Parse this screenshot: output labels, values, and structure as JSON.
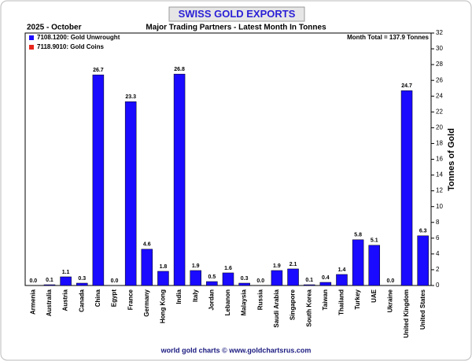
{
  "chart_data": {
    "type": "bar",
    "title": "SWISS GOLD EXPORTS",
    "subtitle": "Major Trading Partners - Latest Month In Tonnes",
    "period": "2025 - October",
    "annotation": "Month Total = 137.9 Tonnes",
    "y_label": "Tonnes of Gold",
    "footer": "world gold charts © www.goldchartsrus.com",
    "categories": [
      "Armenia",
      "Australia",
      "Austria",
      "Canada",
      "China",
      "Egypt",
      "France",
      "Germany",
      "Hong Kong",
      "India",
      "Italy",
      "Jordan",
      "Lebanon",
      "Malaysia",
      "Russia",
      "Saudi Arabia",
      "Singapore",
      "South Korea",
      "Taiwan",
      "Thailand",
      "Turkey",
      "UAE",
      "Ukraine",
      "United Kingdom",
      "United States"
    ],
    "series": [
      {
        "name": "7108.1200: Gold Unwrought",
        "color": "#1a0aff",
        "values": [
          0,
          0.1,
          1.1,
          0.3,
          26.7,
          0,
          23.3,
          4.6,
          1.8,
          26.8,
          1.9,
          0.5,
          1.6,
          0.3,
          0,
          1.9,
          2.1,
          0.1,
          0.4,
          1.4,
          5.8,
          5.1,
          0,
          24.7,
          6.3
        ],
        "value_labels": [
          "0.0",
          "0.1",
          "1.1",
          "0.3",
          "26.7",
          "0.0",
          "23.3",
          "4.6",
          "1.8",
          "26.8",
          "1.9",
          "0.5",
          "1.6",
          "0.3",
          "0.0",
          "1.9",
          "2.1",
          "0.1",
          "0.4",
          "1.4",
          "5.8",
          "5.1",
          "0.0",
          "24.7",
          "6.3"
        ]
      },
      {
        "name": "7118.9010: Gold Coins",
        "color": "#e8261c",
        "values": [
          0,
          0,
          0,
          0,
          0,
          0,
          0,
          0,
          0,
          0,
          0,
          0,
          0,
          0,
          0,
          0,
          0,
          0,
          0,
          0,
          0,
          0,
          0,
          0,
          0
        ]
      }
    ],
    "stacked": true,
    "ylim": [
      0,
      32
    ],
    "yticks": [
      0,
      2,
      4,
      6,
      8,
      10,
      12,
      14,
      16,
      18,
      20,
      22,
      24,
      26,
      28,
      30,
      32
    ],
    "y_axis_side": "right",
    "legend": "top-left"
  }
}
